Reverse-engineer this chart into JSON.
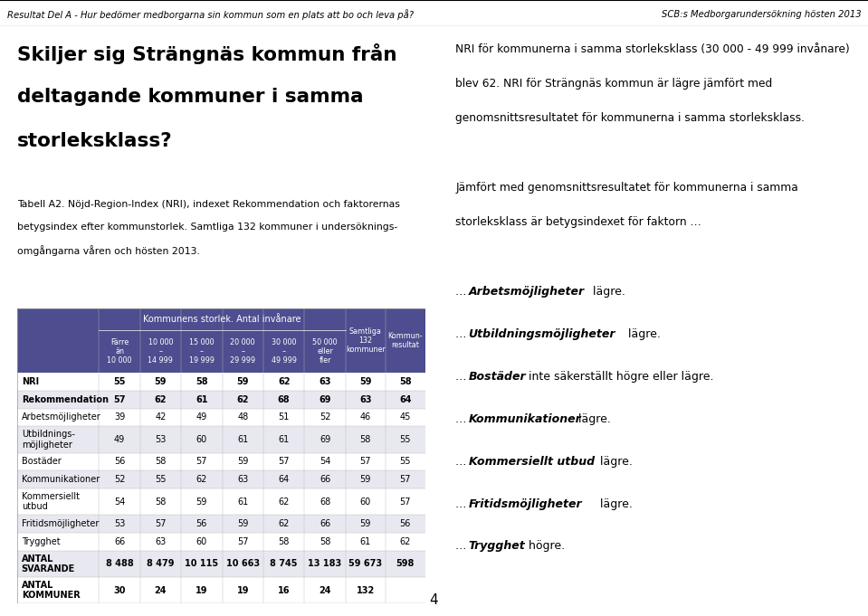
{
  "header_top_left": "Resultat Del A - Hur bedömer medborgarna sin kommun som en plats att bo och leva på?",
  "header_top_right": "SCB:s Medborgarundersökning hösten 2013",
  "big_title_line1": "Skiljer sig Strängnäs kommun från",
  "big_title_line2": "deltagande kommuner i samma",
  "big_title_line3": "storleksklass?",
  "table_caption_line1": "Tabell A2. Nöjd-Region-Index (NRI), indexet Rekommendation och faktorernas",
  "table_caption_line2": "betygsindex efter kommunstorlek. Samtliga 132 kommuner i undersöknings-",
  "table_caption_line3": "omgångarna våren och hösten 2013.",
  "right_para1_lines": [
    "NRI för kommunerna i samma storleksklass (30 000 - 49 999 invånare)",
    "blev 62. NRI för Strängnäs kommun är lägre jämfört med",
    "genomsnittsresultatet för kommunerna i samma storleksklass."
  ],
  "right_para2_lines": [
    "Jämfört med genomsnittsresultatet för kommunerna i samma",
    "storleksklass är betygsindexet för faktorn …"
  ],
  "right_bullets": [
    {
      "bold": "Arbetsmöjligheter",
      "rest": " lägre."
    },
    {
      "bold": "Utbildningsmöjligheter",
      "rest": " lägre."
    },
    {
      "bold": "Bostäder",
      "rest": " inte säkerställt högre eller lägre."
    },
    {
      "bold": "Kommunikationer",
      "rest": " lägre."
    },
    {
      "bold": "Kommersiellt utbud",
      "rest": " lägre."
    },
    {
      "bold": "Fritidsmöjligheter",
      "rest": " lägre."
    },
    {
      "bold": "Trygghet",
      "rest": " högre."
    }
  ],
  "page_number": "4",
  "table_header_bg": "#4d4d8f",
  "table_header_text": "#ffffff",
  "col_subheaders": [
    "Färre\nän\n10 000",
    "10 000\n–\n14 999",
    "15 000\n–\n19 999",
    "20 000\n–\n29 999",
    "30 000\n–\n49 999",
    "50 000\neller\nfler",
    "Samtliga\n132\nkommuner",
    "Kommun-\nresultat"
  ],
  "rows": [
    {
      "label": "NRI",
      "values": [
        "55",
        "59",
        "58",
        "59",
        "62",
        "63",
        "59",
        "58"
      ],
      "bold": true
    },
    {
      "label": "Rekommendation",
      "values": [
        "57",
        "62",
        "61",
        "62",
        "68",
        "69",
        "63",
        "64"
      ],
      "bold": true
    },
    {
      "label": "Arbetsmöjligheter",
      "values": [
        "39",
        "42",
        "49",
        "48",
        "51",
        "52",
        "46",
        "45"
      ],
      "bold": false
    },
    {
      "label": "Utbildnings-\nmöjligheter",
      "values": [
        "49",
        "53",
        "60",
        "61",
        "61",
        "69",
        "58",
        "55"
      ],
      "bold": false
    },
    {
      "label": "Bostäder",
      "values": [
        "56",
        "58",
        "57",
        "59",
        "57",
        "54",
        "57",
        "55"
      ],
      "bold": false
    },
    {
      "label": "Kommunikationer",
      "values": [
        "52",
        "55",
        "62",
        "63",
        "64",
        "66",
        "59",
        "57"
      ],
      "bold": false
    },
    {
      "label": "Kommersiellt\nutbud",
      "values": [
        "54",
        "58",
        "59",
        "61",
        "62",
        "68",
        "60",
        "57"
      ],
      "bold": false
    },
    {
      "label": "Fritidsmöjligheter",
      "values": [
        "53",
        "57",
        "56",
        "59",
        "62",
        "66",
        "59",
        "56"
      ],
      "bold": false
    },
    {
      "label": "Trygghet",
      "values": [
        "66",
        "63",
        "60",
        "57",
        "58",
        "58",
        "61",
        "62"
      ],
      "bold": false
    },
    {
      "label": "ANTAL\nSVARANDE",
      "values": [
        "8 488",
        "8 479",
        "10 115",
        "10 663",
        "8 745",
        "13 183",
        "59 673",
        "598"
      ],
      "bold": true
    },
    {
      "label": "ANTAL\nKOMMUNER",
      "values": [
        "30",
        "24",
        "19",
        "19",
        "16",
        "24",
        "132",
        ""
      ],
      "bold": true
    }
  ]
}
